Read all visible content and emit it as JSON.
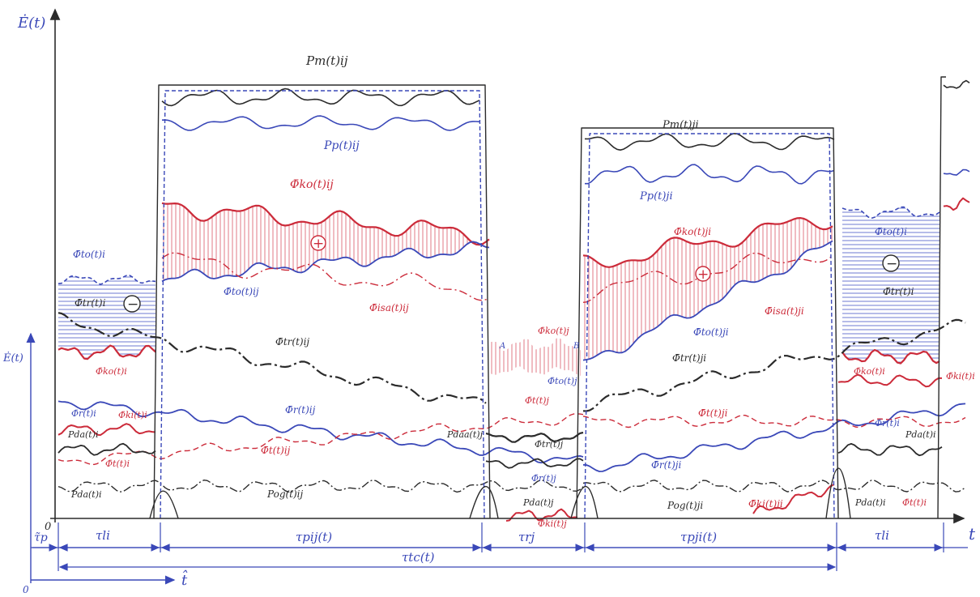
{
  "axes": {
    "y_main": "Ė(t)",
    "y_secondary": "Ė(t)",
    "x_main": "t",
    "origin": "0",
    "origin_secondary": "0",
    "time_shift": "t̂",
    "tau_p": "τ̃p",
    "tau_li_left": "τli",
    "tau_pij": "τpij(t)",
    "tau_rj": "τrj",
    "tau_pji": "τpji(t)",
    "tau_li_right": "τli",
    "tau_tc": "τtc(t)"
  },
  "curve_labels": {
    "pm_ij": "Pm(t)ij",
    "pp_ij": "Pp(t)ij",
    "phi_ko_ij": "Φ̄ko(t)ij",
    "phi_to_ij": "Φ̄to(t)ij",
    "phi_isa_ij": "Φ̄isa(t)ij",
    "phi_tr_ij": "Φ̄tr(t)ij",
    "phi_r_ij": "Φ̄r(t)ij",
    "phi_t_ij": "Φ̄t(t)ij",
    "pog_ij": "Pog(t)ij",
    "pm_ji": "Pm(t)ji",
    "pp_ji": "Pp(t)ji",
    "phi_ko_ji": "Φ̄ko(t)ji",
    "phi_isa_ji": "Φ̄isa(t)ji",
    "phi_to_ji": "Φ̄to(t)ji",
    "phi_tr_ji": "Φ̄tr(t)ji",
    "phi_t_ji": "Φ̄t(t)ji",
    "phi_r_ji": "Φ̄r(t)ji",
    "pog_ji": "Pog(t)ji",
    "phi_ki_ji": "Φ̄ki(t)ji",
    "phi_to_i_left": "Φ̄to(t)i",
    "phi_tr_i_left": "Φ̄tr(t)i",
    "phi_ko_i_left": "Φ̄ko(t)i",
    "phi_r_i_left": "Φ̄r(t)i",
    "phi_ki_i_left": "Φ̄ki(t)i",
    "pda_i_left": "Pda(t)i",
    "phi_t_i_left": "Φ̄t(t)i",
    "pda_i_left2": "Pda(t)i",
    "phi_ko_j": "Φ̄ko(t)j",
    "phi_to_j": "Φ̄to(t)j",
    "phi_t_j": "Φ̄t(t)j",
    "pdaa_j": "Pdaa(t)j",
    "phi_tr_j": "Φ̄tr(t)j",
    "phi_r_j": "Φ̄r(t)j",
    "pda_j": "Pda(t)j",
    "phi_ki_j": "Φ̄ki(t)j",
    "point_a": "A",
    "point_b": "B",
    "phi_to_i_right": "Φ̄to(t)i",
    "phi_tr_i_right": "Φ̄tr(t)i",
    "phi_ko_i_right": "Φ̄ko(t)i",
    "phi_ki_i_right": "Φ̄ki(t)i",
    "phi_r_i_right": "Φ̄r(t)i",
    "pda_i_right": "Pda(t)i",
    "pda_i_right2": "Pda(t)i",
    "phi_t_i_right": "Φ̄t(t)i",
    "plus_1": "+",
    "plus_2": "+",
    "minus_1": "−",
    "minus_2": "−"
  },
  "colors": {
    "blue": "#3a48b8",
    "red": "#cc2b3a",
    "dark": "#2b2b2b",
    "hatch_red": "#e07a84",
    "hatch_blue": "#6d7ad0"
  }
}
